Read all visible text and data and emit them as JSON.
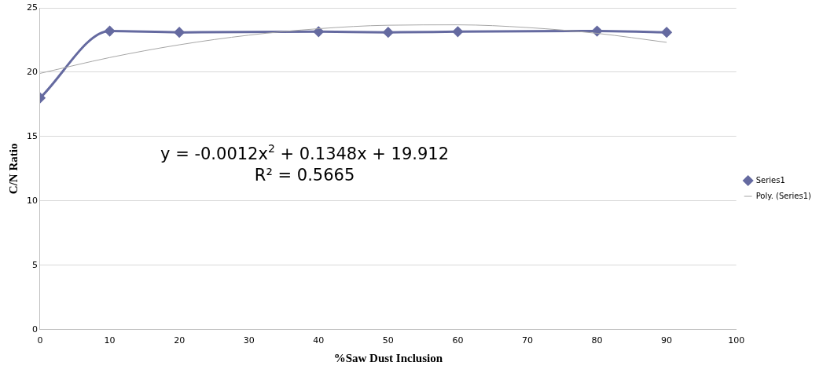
{
  "chart_data": {
    "type": "line",
    "xlabel": "%Saw Dust Inclusion",
    "ylabel": "C/N Ratio",
    "xlim": [
      0,
      100
    ],
    "xticks": [
      0,
      10,
      20,
      30,
      40,
      50,
      60,
      70,
      80,
      90,
      100
    ],
    "ylim": [
      0,
      25
    ],
    "yticks": [
      0,
      5,
      10,
      15,
      20,
      25
    ],
    "grid": "y",
    "legend": "right",
    "marker": "diamond",
    "line_style": "solid",
    "annotations": [
      "y = -0.0012x$^{2}$ + 0.1348x + 19.912",
      "R² = 0.5665"
    ],
    "series": [
      {
        "name": "Series1",
        "color": "#656aa0",
        "x": [
          0,
          10,
          20,
          40,
          50,
          60,
          80,
          90
        ],
        "values": [
          18,
          23.2,
          23.1,
          23.15,
          23.1,
          23.15,
          23.2,
          23.1
        ]
      },
      {
        "name": "Poly. (Series1)",
        "color": "#a6a6a6",
        "marker": "none",
        "x": [
          0,
          10,
          20,
          30,
          40,
          50,
          60,
          70,
          80,
          90
        ],
        "values": [
          19.91,
          21.14,
          22.13,
          22.88,
          23.38,
          23.65,
          23.68,
          23.47,
          23.02,
          22.32
        ]
      }
    ]
  }
}
